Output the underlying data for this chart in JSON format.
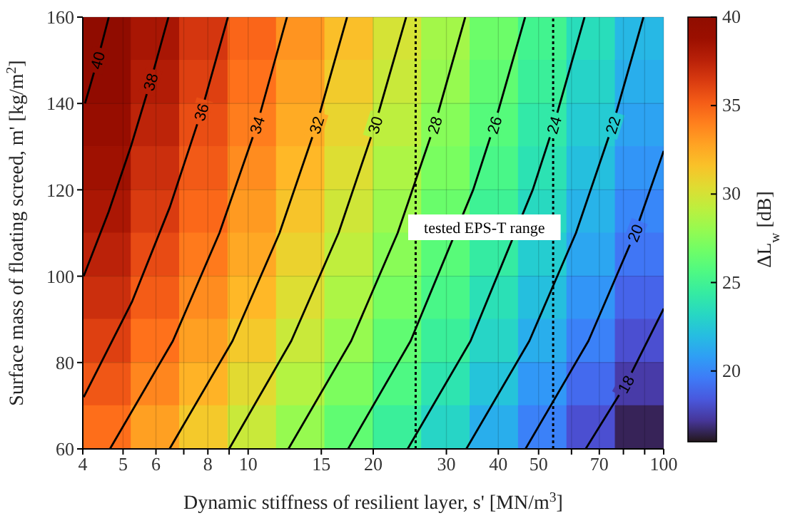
{
  "chart_data": {
    "type": "heatmap",
    "xlabel": "Dynamic stiffness of resilient layer, s' [MN/m$^{3}$]",
    "ylabel": "Surface mass of floating screed, m' [kg/m$^{2}$]",
    "clabel": "ΔL$_{w}$ [dB]",
    "log": "x",
    "grid": true,
    "xlim": [
      4,
      100
    ],
    "ylim": [
      60,
      160
    ],
    "xticks": [
      4,
      5,
      6,
      {
        "value": 7,
        "label": null
      },
      8,
      {
        "value": 9,
        "label": null
      },
      10,
      15,
      20,
      30,
      40,
      50,
      {
        "value": 60,
        "label": null
      },
      70,
      {
        "value": 80,
        "label": null
      },
      {
        "value": 90,
        "label": null
      },
      100
    ],
    "yticks": [
      60,
      80,
      100,
      120,
      140,
      160
    ],
    "clim": [
      16,
      40
    ],
    "cticks": [
      20,
      25,
      30,
      35,
      40
    ],
    "cells": [
      [
        39.9,
        38.2,
        36.6,
        34.9,
        33.3,
        31.7,
        30.0,
        28.4,
        26.7,
        25.1,
        23.5,
        21.8
      ],
      [
        39.5,
        37.8,
        36.2,
        34.5,
        32.9,
        31.2,
        29.6,
        28.0,
        26.3,
        24.7,
        23.0,
        21.4
      ],
      [
        39.0,
        37.4,
        35.7,
        34.1,
        32.5,
        30.8,
        29.2,
        27.5,
        25.9,
        24.2,
        22.6,
        21.0
      ],
      [
        38.6,
        36.9,
        35.3,
        33.6,
        32.0,
        30.3,
        28.7,
        27.1,
        25.4,
        23.8,
        22.1,
        20.5
      ],
      [
        38.1,
        36.4,
        34.8,
        33.1,
        31.5,
        29.8,
        28.2,
        26.6,
        24.9,
        23.3,
        21.6,
        20.0
      ],
      [
        37.5,
        35.8,
        34.2,
        32.6,
        30.9,
        29.3,
        27.6,
        26.0,
        24.4,
        22.7,
        21.1,
        19.4
      ],
      [
        36.9,
        35.2,
        33.6,
        32.0,
        30.3,
        28.7,
        27.0,
        25.4,
        23.7,
        22.1,
        20.5,
        18.8
      ],
      [
        36.2,
        34.5,
        32.9,
        31.3,
        29.6,
        28.0,
        26.3,
        24.7,
        23.1,
        21.4,
        19.8,
        18.1
      ],
      [
        35.4,
        33.8,
        32.2,
        30.5,
        28.9,
        27.2,
        25.6,
        23.9,
        22.3,
        20.6,
        19.0,
        17.4
      ],
      [
        34.6,
        32.9,
        31.3,
        29.6,
        28.0,
        26.3,
        24.7,
        23.1,
        21.4,
        19.8,
        18.1,
        16.5
      ]
    ],
    "series": [
      {
        "type": "line",
        "name": "40",
        "color": "#000000",
        "x": [
          4.05,
          4.34,
          4.62
        ],
        "values": [
          140,
          150,
          160
        ]
      },
      {
        "type": "line",
        "name": "38",
        "color": "#000000",
        "x": [
          4.02,
          4.62,
          5.22,
          5.82,
          6.43
        ],
        "values": [
          100,
          115,
          130,
          145,
          160
        ]
      },
      {
        "type": "line",
        "name": "36",
        "color": "#000000",
        "x": [
          4.02,
          5.25,
          6.48,
          7.71,
          8.94
        ],
        "values": [
          72,
          94,
          116,
          138,
          160
        ]
      },
      {
        "type": "line",
        "name": "34",
        "color": "#000000",
        "x": [
          4.65,
          6.59,
          8.53,
          10.5,
          12.4
        ],
        "values": [
          60,
          85,
          110,
          135,
          160
        ]
      },
      {
        "type": "line",
        "name": "32",
        "color": "#000000",
        "x": [
          6.47,
          9.17,
          11.9,
          14.6,
          17.3
        ],
        "values": [
          60,
          85,
          110,
          135,
          160
        ]
      },
      {
        "type": "line",
        "name": "30",
        "color": "#000000",
        "x": [
          9.0,
          12.7,
          16.5,
          20.2,
          24.0
        ],
        "values": [
          60,
          85,
          110,
          135,
          160
        ]
      },
      {
        "type": "line",
        "name": "28",
        "color": "#000000",
        "x": [
          12.5,
          17.7,
          22.9,
          28.1,
          33.3
        ],
        "values": [
          60,
          85,
          110,
          135,
          160
        ]
      },
      {
        "type": "line",
        "name": "26",
        "color": "#000000",
        "x": [
          17.4,
          24.6,
          34.8,
          39.1,
          46.4
        ],
        "values": [
          60,
          85,
          120,
          135,
          160
        ]
      },
      {
        "type": "line",
        "name": "24",
        "color": "#000000",
        "x": [
          24.2,
          34.3,
          48.4,
          54.4,
          64.5
        ],
        "values": [
          60,
          85,
          120,
          135,
          160
        ]
      },
      {
        "type": "line",
        "name": "22",
        "color": "#000000",
        "x": [
          33.5,
          47.5,
          61.5,
          75.4,
          89.4
        ],
        "values": [
          60,
          85,
          110,
          135,
          160
        ]
      },
      {
        "type": "line",
        "name": "20",
        "color": "#000000",
        "x": [
          46.5,
          65.9,
          85.3,
          100
        ],
        "values": [
          60,
          85,
          110,
          129
        ]
      },
      {
        "type": "line",
        "name": "18",
        "color": "#000000",
        "x": [
          64.9,
          81.1,
          100
        ],
        "values": [
          60,
          75,
          92.5
        ]
      }
    ],
    "ref_lines": [
      {
        "axis": "x",
        "value": 25.3,
        "line_style": "dotted",
        "color": "#000000"
      },
      {
        "axis": "x",
        "value": 54.2,
        "line_style": "dotted",
        "color": "#000000"
      }
    ],
    "annotations": [
      "tested EPS-T range"
    ]
  }
}
